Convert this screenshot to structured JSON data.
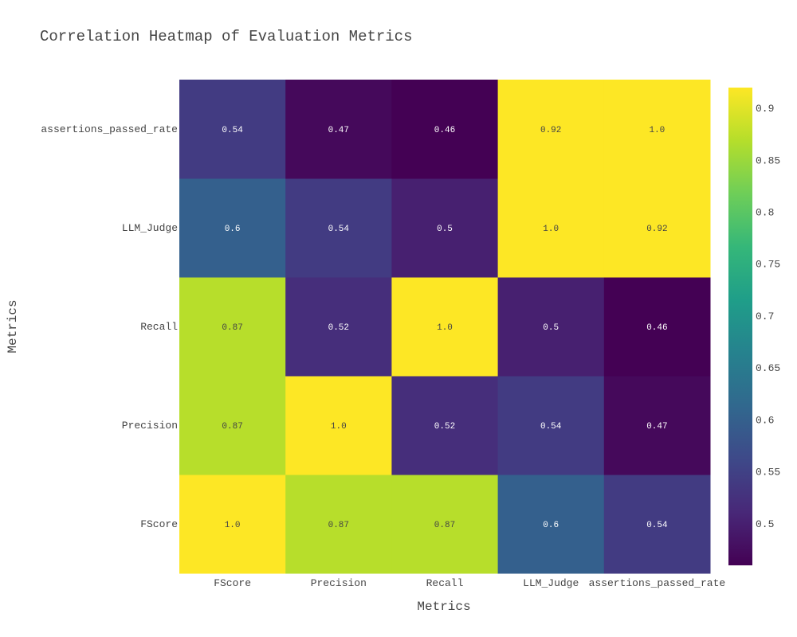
{
  "chart_data": {
    "type": "heatmap",
    "title": "Correlation Heatmap of Evaluation Metrics",
    "xlabel": "Metrics",
    "ylabel": "Metrics",
    "x_categories": [
      "FScore",
      "Precision",
      "Recall",
      "LLM_Judge",
      "assertions_passed_rate"
    ],
    "y_categories": [
      "FScore",
      "Precision",
      "Recall",
      "LLM_Judge",
      "assertions_passed_rate"
    ],
    "z": [
      [
        1.0,
        0.87,
        0.87,
        0.6,
        0.54
      ],
      [
        0.87,
        1.0,
        0.52,
        0.54,
        0.47
      ],
      [
        0.87,
        0.52,
        1.0,
        0.5,
        0.46
      ],
      [
        0.6,
        0.54,
        0.5,
        1.0,
        0.92
      ],
      [
        0.54,
        0.47,
        0.46,
        0.92,
        1.0
      ]
    ],
    "cell_text": [
      [
        "1.0",
        "0.87",
        "0.87",
        "0.6",
        "0.54"
      ],
      [
        "0.87",
        "1.0",
        "0.52",
        "0.54",
        "0.47"
      ],
      [
        "0.87",
        "0.52",
        "1.0",
        "0.5",
        "0.46"
      ],
      [
        "0.6",
        "0.54",
        "0.5",
        "1.0",
        "0.92"
      ],
      [
        "0.54",
        "0.47",
        "0.46",
        "0.92",
        "1.0"
      ]
    ],
    "colorscale": "Viridis",
    "color_range": [
      0.46,
      0.92
    ],
    "colorbar_ticks": [
      "0.5",
      "0.55",
      "0.6",
      "0.65",
      "0.7",
      "0.75",
      "0.8",
      "0.85",
      "0.9"
    ],
    "colorbar_tick_values": [
      0.5,
      0.55,
      0.6,
      0.65,
      0.7,
      0.75,
      0.8,
      0.85,
      0.9
    ],
    "colors": {
      "text": "#444444",
      "title": "#2a3f5f",
      "viridis": [
        "#440154",
        "#482878",
        "#3e4989",
        "#31688e",
        "#26828e",
        "#1f9e89",
        "#35b779",
        "#6ece58",
        "#b5de2b",
        "#fde725"
      ]
    }
  }
}
